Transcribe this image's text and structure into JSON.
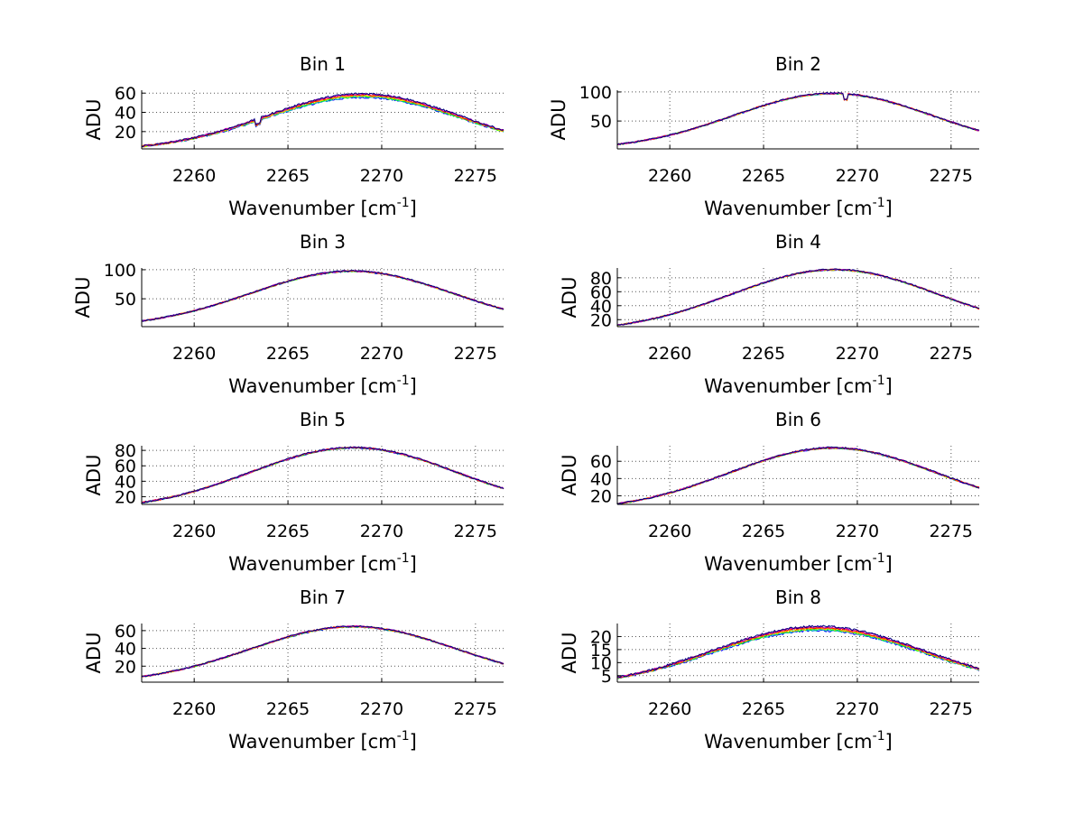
{
  "chart_data": [
    {
      "type": "line",
      "title": "Bin 1",
      "xlabel": "Wavenumber [cm",
      "xlabel_sup": "-1",
      "xlabel_end": "]",
      "ylabel": "ADU",
      "xlim": [
        2257.2,
        2276.5
      ],
      "ylim": [
        2,
        63
      ],
      "xticks": [
        2260,
        2265,
        2270,
        2275
      ],
      "yticks": [
        20,
        40,
        60
      ],
      "grid": true,
      "peak": 57,
      "center": 2269.0,
      "width": 5.2,
      "spread": 4,
      "dip": {
        "x": 2263.4,
        "depth": 5
      },
      "noise": 1.0
    },
    {
      "type": "line",
      "title": "Bin 2",
      "xlabel": "Wavenumber [cm",
      "xlabel_sup": "-1",
      "xlabel_end": "]",
      "ylabel": "ADU",
      "xlim": [
        2257.2,
        2276.5
      ],
      "ylim": [
        2,
        103
      ],
      "xticks": [
        2260,
        2265,
        2270,
        2275
      ],
      "yticks": [
        50,
        100
      ],
      "grid": true,
      "peak": 97,
      "center": 2268.7,
      "width": 5.3,
      "spread": 1.2,
      "dip": {
        "x": 2269.4,
        "depth": 10
      },
      "noise": 1.2
    },
    {
      "type": "line",
      "title": "Bin 3",
      "xlabel": "Wavenumber [cm",
      "xlabel_sup": "-1",
      "xlabel_end": "]",
      "ylabel": "ADU",
      "xlim": [
        2257.2,
        2276.5
      ],
      "ylim": [
        2,
        103
      ],
      "xticks": [
        2260,
        2265,
        2270,
        2275
      ],
      "yticks": [
        50,
        100
      ],
      "grid": true,
      "peak": 97,
      "center": 2268.4,
      "width": 5.4,
      "spread": 1.0,
      "noise": 1.2
    },
    {
      "type": "line",
      "title": "Bin 4",
      "xlabel": "Wavenumber [cm",
      "xlabel_sup": "-1",
      "xlabel_end": "]",
      "ylabel": "ADU",
      "xlim": [
        2257.2,
        2276.5
      ],
      "ylim": [
        10,
        94
      ],
      "xticks": [
        2260,
        2265,
        2270,
        2275
      ],
      "yticks": [
        20,
        40,
        60,
        80
      ],
      "grid": true,
      "peak": 89,
      "center": 2268.8,
      "width": 5.5,
      "spread": 0.8,
      "noise": 1.0
    },
    {
      "type": "line",
      "title": "Bin 5",
      "xlabel": "Wavenumber [cm",
      "xlabel_sup": "-1",
      "xlabel_end": "]",
      "ylabel": "ADU",
      "xlim": [
        2257.2,
        2276.5
      ],
      "ylim": [
        10,
        86
      ],
      "xticks": [
        2260,
        2265,
        2270,
        2275
      ],
      "yticks": [
        20,
        40,
        60,
        80
      ],
      "grid": true,
      "peak": 81,
      "center": 2268.5,
      "width": 5.5,
      "spread": 0.8,
      "noise": 1.0
    },
    {
      "type": "line",
      "title": "Bin 6",
      "xlabel": "Wavenumber [cm",
      "xlabel_sup": "-1",
      "xlabel_end": "]",
      "ylabel": "ADU",
      "xlim": [
        2257.2,
        2276.5
      ],
      "ylim": [
        10,
        78
      ],
      "xticks": [
        2260,
        2265,
        2270,
        2275
      ],
      "yticks": [
        20,
        40,
        60
      ],
      "grid": true,
      "peak": 73,
      "center": 2268.7,
      "width": 5.5,
      "spread": 0.8,
      "noise": 0.9
    },
    {
      "type": "line",
      "title": "Bin 7",
      "xlabel": "Wavenumber [cm",
      "xlabel_sup": "-1",
      "xlabel_end": "]",
      "ylabel": "ADU",
      "xlim": [
        2257.2,
        2276.5
      ],
      "ylim": [
        2,
        68
      ],
      "xticks": [
        2260,
        2265,
        2270,
        2275
      ],
      "yticks": [
        20,
        40,
        60
      ],
      "grid": true,
      "peak": 64,
      "center": 2268.5,
      "width": 5.5,
      "spread": 0.8,
      "noise": 0.8
    },
    {
      "type": "line",
      "title": "Bin 8",
      "xlabel": "Wavenumber [cm",
      "xlabel_sup": "-1",
      "xlabel_end": "]",
      "ylabel": "ADU",
      "xlim": [
        2257.2,
        2276.5
      ],
      "ylim": [
        2.5,
        25
      ],
      "xticks": [
        2260,
        2265,
        2270,
        2275
      ],
      "yticks": [
        5,
        10,
        15,
        20
      ],
      "grid": true,
      "peak": 22.5,
      "center": 2267.9,
      "width": 5.6,
      "spread": 1.6,
      "noise": 0.4
    }
  ],
  "series_colors": [
    "#0000ff",
    "#00bfbf",
    "#00ff00",
    "#ffd700",
    "#ff7f00",
    "#ff0000",
    "#bf00bf",
    "#000080"
  ]
}
